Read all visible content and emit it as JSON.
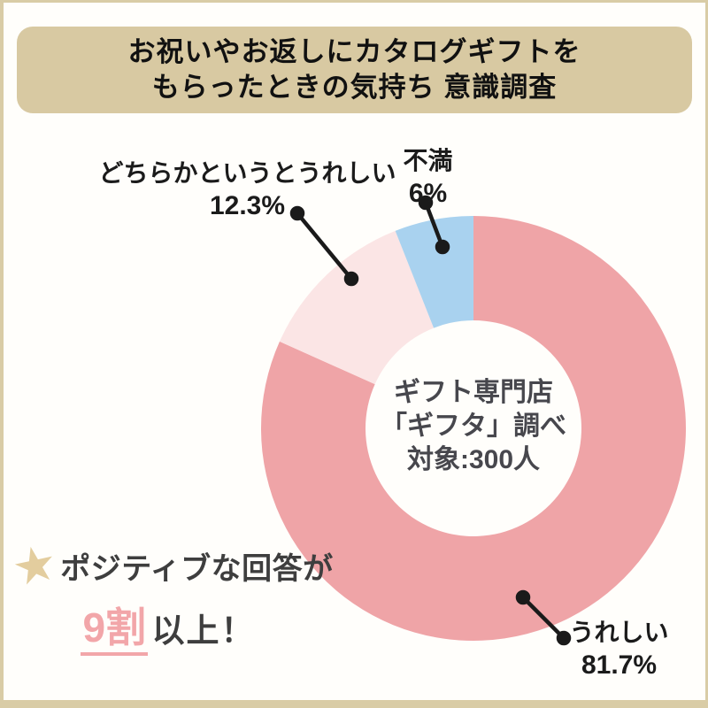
{
  "header": {
    "title_line1": "お祝いやお返しにカタログギフトを",
    "title_line2": "もらったときの気持ち 意識調査"
  },
  "chart_data": {
    "type": "pie",
    "donut": true,
    "title": "お祝いやお返しにカタログギフトをもらったときの気持ち 意識調査",
    "direction": "clockwise",
    "start_angle_deg": 0,
    "slices": [
      {
        "key": "ureshii",
        "label": "うれしい",
        "value": 81.7,
        "display": "81.7%",
        "color": "#EFA4A7"
      },
      {
        "key": "dochiraka",
        "label": "どちらかというとうれしい",
        "value": 12.3,
        "display": "12.3%",
        "color": "#FBE5E5"
      },
      {
        "key": "fuman",
        "label": "不満",
        "value": 6,
        "display": "6%",
        "color": "#A9D2EF"
      }
    ],
    "center_note": [
      "ギフト専門店",
      "「ギフタ」調べ",
      "対象:300人"
    ]
  },
  "callout": {
    "star_icon": "★",
    "line1": "ポジティブな回答が",
    "highlight": "9割",
    "line2_rest": "以上！"
  },
  "colors": {
    "background": "#FFFEFB",
    "frame": "#D9CCA6",
    "header-bg": "#D8C9A2",
    "header-text": "#111111",
    "label-text": "#1B1B1B",
    "center-text": "#47474D",
    "callout-text": "#3E3E3E",
    "star": "#E3CD9E",
    "highlight-pink": "#F2A6A9",
    "connector": "#1A1A1A"
  }
}
